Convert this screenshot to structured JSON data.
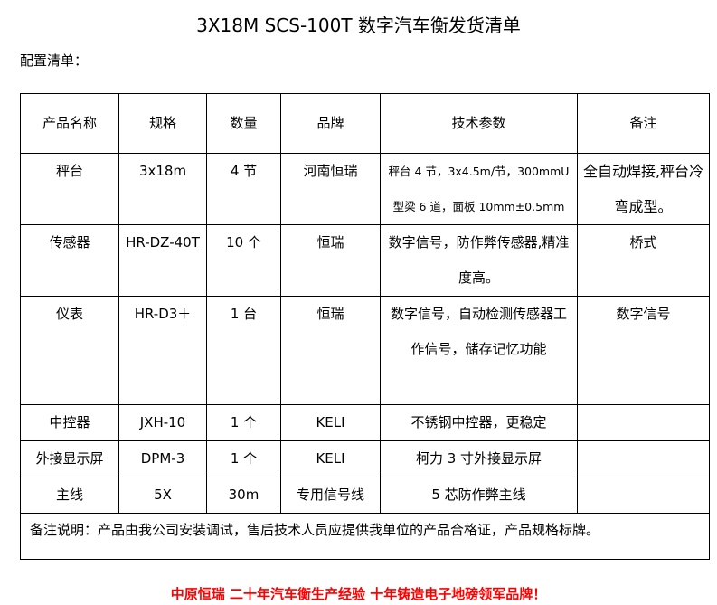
{
  "title": "3X18M SCS-100T 数字汽车衡发货清单",
  "subtitle": "配置清单：",
  "headers": [
    "产品名称",
    "规格",
    "数量",
    "品牌",
    "技术参数",
    "备注"
  ],
  "rows": [
    [
      "秤台",
      "3x18m",
      "4 节",
      "河南恒瑞",
      "秤台 4 节，3x4.5m/节，300mmU型梁 6 道，面板 10mm±0.5mm",
      "全自动焊接,秤台冷弯成型。"
    ],
    [
      "传感器",
      "HR-DZ-40T",
      "10 个",
      "恒瑞",
      "数字信号，防作弊传感器,精准度高。",
      "桥式"
    ],
    [
      "仪表",
      "HR-D3＋",
      "1 台",
      "恒瑞",
      "数字信号，自动检测传感器工作信号，储存记忆功能",
      "数字信号"
    ],
    [
      "中控器",
      "JXH-10",
      "1 个",
      "KELI",
      "不锈钢中控器，更稳定",
      ""
    ],
    [
      "外接显示屏",
      "DPM-3",
      "1 个",
      "KELI",
      "柯力 3 寸外接显示屏",
      ""
    ],
    [
      "主线",
      "5X",
      "30m",
      "专用信号线",
      "5 芯防作弊主线",
      ""
    ]
  ],
  "note": "备注说明：产品由我公司安装调试，售后技术人员应提供我单位的产品合格证，产品规格标牌。",
  "slogan": "中原恒瑞 二十年汽车衡生产经验 十年铸造电子地磅领军品牌！",
  "colors": {
    "slogan": "#ff0000"
  }
}
